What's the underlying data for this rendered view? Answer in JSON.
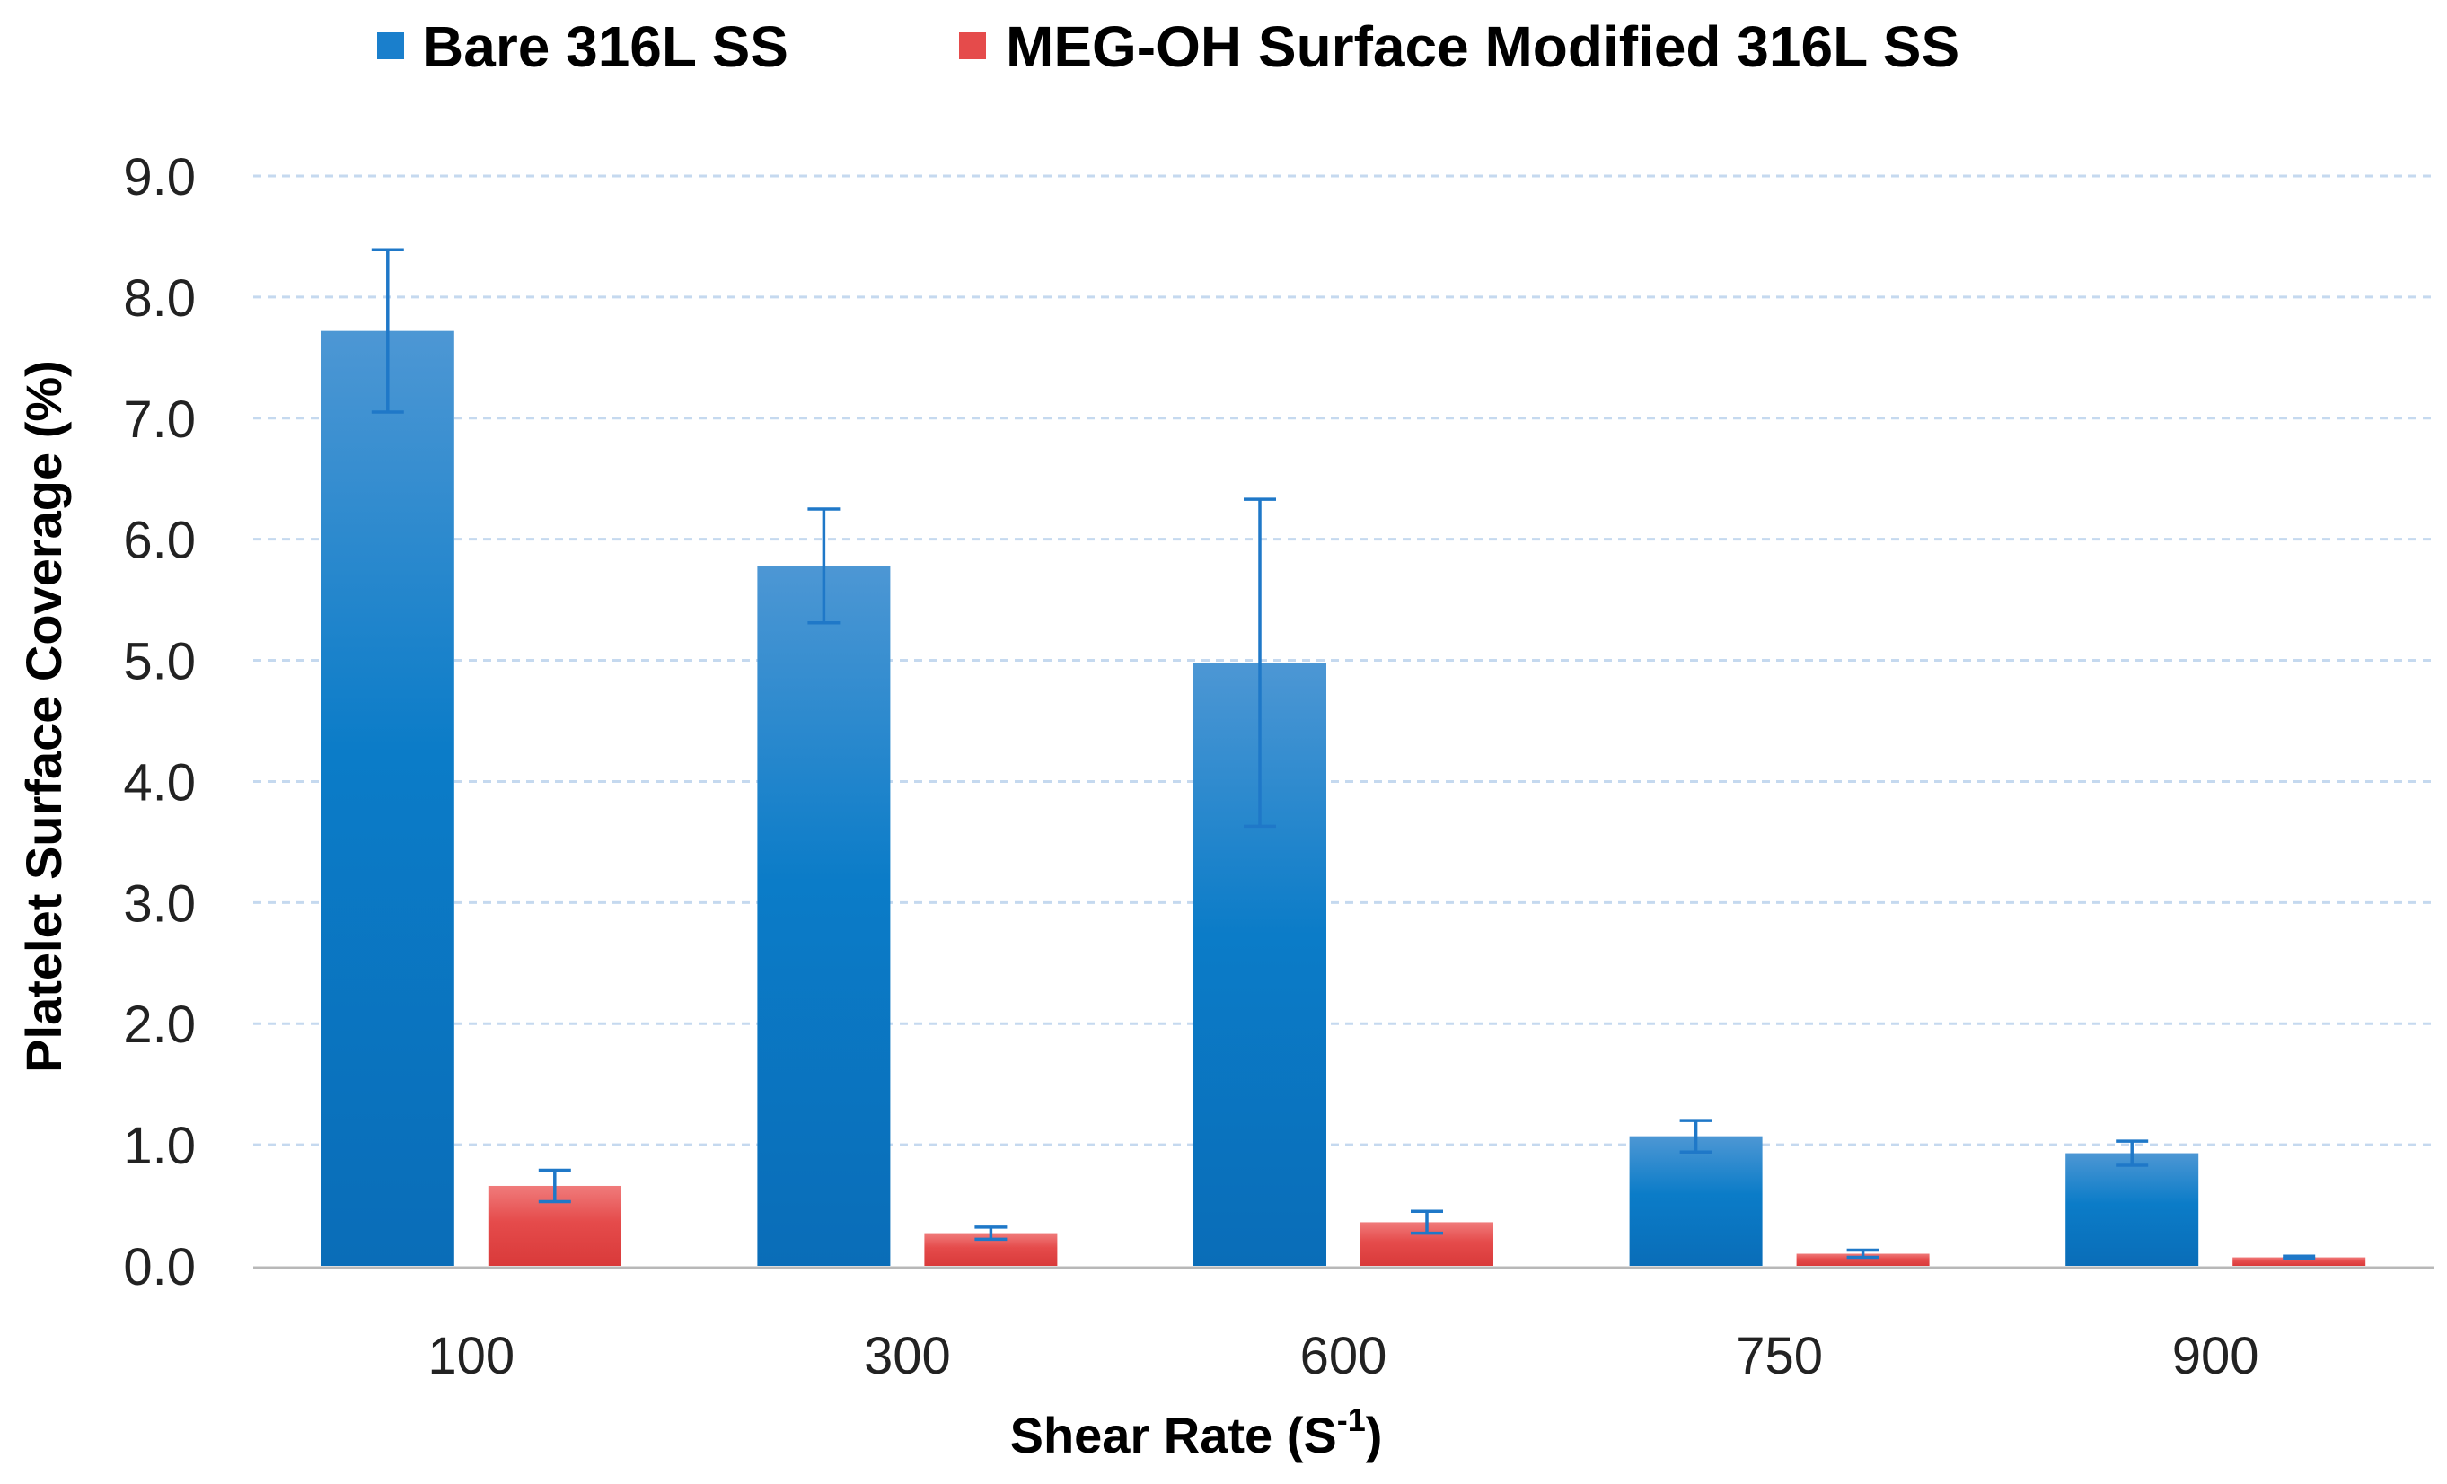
{
  "chart_data": {
    "type": "bar",
    "title": "",
    "xlabel": "Shear Rate (S",
    "xlabel_superscript": "-1",
    "xlabel_suffix": ")",
    "ylabel": "Platelet Surface Coverage (%)",
    "ylim": [
      0,
      9
    ],
    "yticks": [
      "0.0",
      "1.0",
      "2.0",
      "3.0",
      "4.0",
      "5.0",
      "6.0",
      "7.0",
      "8.0",
      "9.0"
    ],
    "grid": true,
    "legend_position": "top",
    "categories": [
      "100",
      "300",
      "600",
      "750",
      "900"
    ],
    "series": [
      {
        "name": "Bare 316L SS",
        "color": "#1a7fcc",
        "color_light": "#4d97d4",
        "color_dark": "#0a6db8",
        "values": [
          7.72,
          5.78,
          4.98,
          1.07,
          0.93
        ],
        "error": [
          0.67,
          0.47,
          1.35,
          0.13,
          0.1
        ]
      },
      {
        "name": "MEG-OH Surface Modified 316L SS",
        "color": "#e54b4b",
        "color_light": "#f07b7b",
        "color_dark": "#d93a3a",
        "values": [
          0.66,
          0.27,
          0.36,
          0.1,
          0.07
        ],
        "error": [
          0.13,
          0.05,
          0.09,
          0.03,
          0.01
        ]
      }
    ]
  }
}
